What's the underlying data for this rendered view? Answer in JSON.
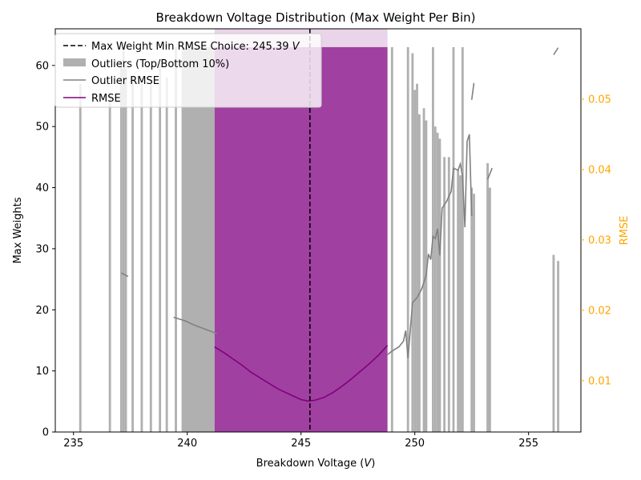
{
  "chart_data": {
    "type": "bar",
    "title": "Breakdown Voltage Distribution (Max Weight Per Bin)",
    "xlabel": "Breakdown Voltage (",
    "xlabel_unit": "V",
    "xlabel_close": ")",
    "ylabel_left": "Max Weights",
    "ylabel_right": "RMSE",
    "xlim": [
      234.2,
      257.3
    ],
    "ylim_left": [
      0,
      66
    ],
    "ylim_right": [
      0.0027,
      0.06
    ],
    "xticks": [
      235,
      240,
      245,
      250,
      255
    ],
    "yticks_left": [
      0,
      10,
      20,
      30,
      40,
      50,
      60
    ],
    "yticks_right": [
      0.01,
      0.02,
      0.03,
      0.04,
      0.05
    ],
    "yticks_right_labels": [
      "0.01",
      "0.02",
      "0.03",
      "0.04",
      "0.05"
    ],
    "grid": false,
    "legend_position": "top-left",
    "colors": {
      "outlier_bar": "#b0b0b0",
      "inlier_bar": "#a040a0",
      "highlight_band": "#e9d4e9",
      "rmse_line": "#800080",
      "outlier_rmse_line": "#808080",
      "choice_line": "#000000",
      "right_axis": "#ffa500"
    },
    "choice_line": {
      "x": 245.39,
      "label": "Max Weight Min RMSE Choice: 245.39",
      "label_unit": "V"
    },
    "series": [
      {
        "name": "Outliers (Top/Bottom 10%)",
        "kind": "bar",
        "bar_width": 0.1,
        "points": [
          [
            235.3,
            57
          ],
          [
            236.6,
            55
          ],
          [
            237.1,
            61
          ],
          [
            237.2,
            63
          ],
          [
            237.3,
            60
          ],
          [
            237.6,
            58
          ],
          [
            238.0,
            57
          ],
          [
            238.4,
            57
          ],
          [
            238.8,
            60
          ],
          [
            239.1,
            58
          ],
          [
            239.5,
            63
          ],
          [
            239.8,
            63
          ],
          [
            249.0,
            63
          ],
          [
            249.7,
            63
          ],
          [
            249.9,
            62
          ],
          [
            250.0,
            56
          ],
          [
            250.1,
            57
          ],
          [
            250.2,
            52
          ],
          [
            250.4,
            53
          ],
          [
            250.5,
            51
          ],
          [
            250.8,
            63
          ],
          [
            250.9,
            50
          ],
          [
            251.0,
            49
          ],
          [
            251.1,
            48
          ],
          [
            251.3,
            45
          ],
          [
            251.5,
            45
          ],
          [
            251.7,
            63
          ],
          [
            251.9,
            43
          ],
          [
            252.0,
            42
          ],
          [
            252.1,
            63
          ],
          [
            252.5,
            40
          ],
          [
            252.6,
            39
          ],
          [
            253.2,
            44
          ],
          [
            253.3,
            40
          ],
          [
            256.1,
            29
          ],
          [
            256.3,
            28
          ]
        ],
        "filled_range": [
          239.8,
          248.9
        ],
        "filled_height": 63
      },
      {
        "name": "Outlier RMSE",
        "kind": "line",
        "segments": [
          [
            [
              237.1,
              0.0253
            ],
            [
              237.4,
              0.0248
            ]
          ],
          [
            [
              239.4,
              0.019
            ],
            [
              239.9,
              0.0185
            ],
            [
              240.3,
              0.0179
            ],
            [
              240.8,
              0.0173
            ],
            [
              241.3,
              0.0167
            ]
          ],
          [
            [
              248.8,
              0.0137
            ],
            [
              249.0,
              0.0142
            ],
            [
              249.3,
              0.0148
            ],
            [
              249.5,
              0.0156
            ],
            [
              249.6,
              0.0171
            ],
            [
              249.7,
              0.0132
            ],
            [
              249.9,
              0.0211
            ],
            [
              250.1,
              0.0218
            ],
            [
              250.3,
              0.023
            ],
            [
              250.5,
              0.025
            ],
            [
              250.6,
              0.028
            ],
            [
              250.7,
              0.0272
            ],
            [
              250.8,
              0.0305
            ],
            [
              250.9,
              0.0302
            ],
            [
              251.0,
              0.0316
            ],
            [
              251.1,
              0.0278
            ],
            [
              251.2,
              0.0345
            ],
            [
              251.4,
              0.0355
            ],
            [
              251.6,
              0.0369
            ],
            [
              251.7,
              0.0402
            ],
            [
              251.9,
              0.0399
            ],
            [
              252.0,
              0.0408
            ],
            [
              252.1,
              0.039
            ],
            [
              252.2,
              0.0318
            ],
            [
              252.3,
              0.044
            ],
            [
              252.4,
              0.045
            ],
            [
              252.5,
              0.0334
            ]
          ],
          [
            [
              252.5,
              0.0499
            ],
            [
              252.6,
              0.0523
            ]
          ],
          [
            [
              253.2,
              0.0386
            ],
            [
              253.4,
              0.0402
            ]
          ],
          [
            [
              256.1,
              0.0563
            ],
            [
              256.3,
              0.0573
            ]
          ]
        ]
      },
      {
        "name": "RMSE",
        "kind": "line",
        "points": [
          [
            241.2,
            0.0148
          ],
          [
            241.6,
            0.014
          ],
          [
            242.0,
            0.0131
          ],
          [
            242.4,
            0.0122
          ],
          [
            242.8,
            0.0112
          ],
          [
            243.2,
            0.0104
          ],
          [
            243.6,
            0.0096
          ],
          [
            244.0,
            0.0088
          ],
          [
            244.4,
            0.0082
          ],
          [
            244.8,
            0.0076
          ],
          [
            245.0,
            0.0073
          ],
          [
            245.3,
            0.0071
          ],
          [
            245.6,
            0.0072
          ],
          [
            246.0,
            0.0076
          ],
          [
            246.4,
            0.0083
          ],
          [
            246.8,
            0.0092
          ],
          [
            247.2,
            0.0102
          ],
          [
            247.6,
            0.0113
          ],
          [
            248.0,
            0.0124
          ],
          [
            248.4,
            0.0136
          ],
          [
            248.8,
            0.015
          ]
        ]
      }
    ]
  }
}
